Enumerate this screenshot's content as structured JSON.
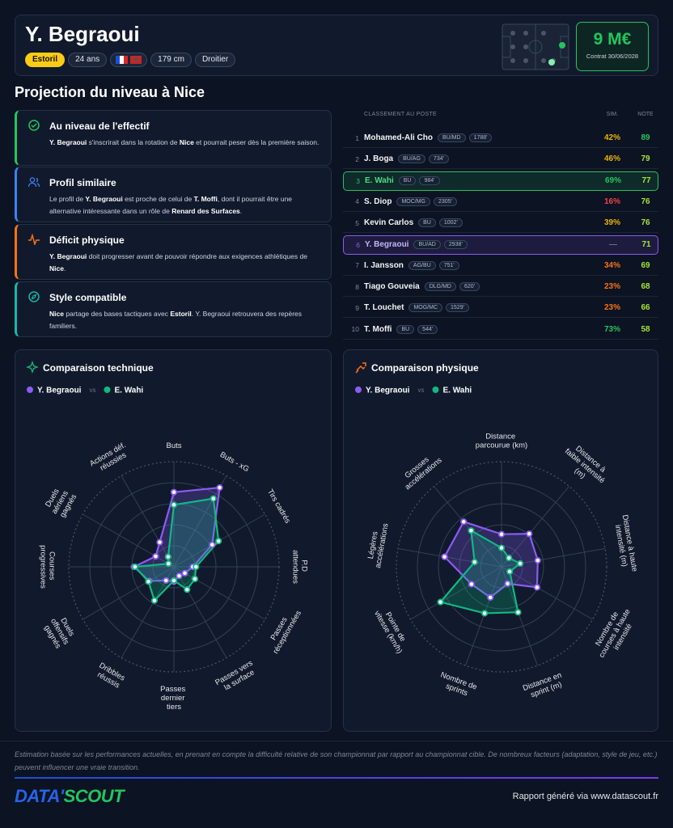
{
  "header": {
    "name": "Y. Begraoui",
    "club": "Estoril",
    "age": "24 ans",
    "height": "179 cm",
    "foot": "Droitier",
    "value": "9 M€",
    "contract": "Contrat 30/06/2028"
  },
  "section_title": "Projection du niveau à Nice",
  "insights": [
    {
      "title": "Au niveau de l'effectif",
      "color": "#22c55e",
      "text": [
        {
          "text": "Y. Begraoui",
          "bold": true
        },
        {
          "text": " s'inscrirait dans la rotation de "
        },
        {
          "text": "Nice",
          "bold": true
        },
        {
          "text": " et pourrait peser dès la première saison."
        }
      ]
    },
    {
      "title": "Profil similaire",
      "color": "#3b82f6",
      "text": [
        {
          "text": "Le profil de "
        },
        {
          "text": "Y. Begraoui",
          "bold": true
        },
        {
          "text": " est proche de celui de "
        },
        {
          "text": "T. Moffi",
          "bold": true
        },
        {
          "text": ", dont il pourrait être une alternative intéressante dans un rôle de "
        },
        {
          "text": "Renard des Surfaces",
          "bold": true
        },
        {
          "text": "."
        }
      ]
    },
    {
      "title": "Déficit physique",
      "color": "#f97316",
      "text": [
        {
          "text": "Y. Begraoui",
          "bold": true
        },
        {
          "text": " doit progresser avant de pouvoir répondre aux exigences athlétiques de "
        },
        {
          "text": "Nice",
          "bold": true
        },
        {
          "text": "."
        }
      ]
    },
    {
      "title": "Style compatible",
      "color": "#14b8a6",
      "text": [
        {
          "text": "Nice",
          "bold": true
        },
        {
          "text": " partage des bases tactiques avec "
        },
        {
          "text": "Estoril",
          "bold": true
        },
        {
          "text": ". Y. Begraoui retrouvera des repères familiers."
        }
      ]
    }
  ],
  "ranking": {
    "header": {
      "position": "CLASSEMENT AU POSTE",
      "sim": "SIM.",
      "note": "NOTE"
    },
    "rows": [
      {
        "rank": 1,
        "name": "Mohamed-Ali Cho",
        "positions": "BU/MD",
        "minutes": "1788'",
        "sim": "42%",
        "note": 89
      },
      {
        "rank": 2,
        "name": "J. Boga",
        "positions": "BU/AG",
        "minutes": "734'",
        "sim": "46%",
        "note": 79
      },
      {
        "rank": 3,
        "name": "E. Wahi",
        "positions": "BU",
        "minutes": "984'",
        "sim": "69%",
        "note": 77,
        "highlight": "#22c55e"
      },
      {
        "rank": 4,
        "name": "S. Diop",
        "positions": "MOC/MG",
        "minutes": "2305'",
        "sim": "16%",
        "note": 76
      },
      {
        "rank": 5,
        "name": "Kevin Carlos",
        "positions": "BU",
        "minutes": "1002'",
        "sim": "39%",
        "note": 76
      },
      {
        "rank": 6,
        "name": "Y. Begraoui",
        "positions": "BU/AD",
        "minutes": "2938'",
        "sim": "—",
        "note": 71,
        "highlight": "#8b5cf6"
      },
      {
        "rank": 7,
        "name": "I. Jansson",
        "positions": "AG/BU",
        "minutes": "751'",
        "sim": "34%",
        "note": 69
      },
      {
        "rank": 8,
        "name": "Tiago Gouveia",
        "positions": "DLG/MD",
        "minutes": "620'",
        "sim": "23%",
        "note": 68
      },
      {
        "rank": 9,
        "name": "T. Louchet",
        "positions": "MOG/MC",
        "minutes": "1529'",
        "sim": "23%",
        "note": 66
      },
      {
        "rank": 10,
        "name": "T. Moffi",
        "positions": "BU",
        "minutes": "544'",
        "sim": "73%",
        "note": 58
      }
    ]
  },
  "chart_data": [
    {
      "type": "radar",
      "title": "Comparaison technique",
      "legend_separator": "vs",
      "ylim": [
        0,
        100
      ],
      "categories": [
        "Buts",
        "Buts - xG",
        "Tirs cadrés",
        "P.D attendues",
        "Passes réceptionnées",
        "Passes vers la surface",
        "Passes dernier tiers",
        "Dribbles réussis",
        "Duels offensifs gagnés",
        "Courses progressives",
        "Duels aériens gagnés",
        "Actions déf. réussies"
      ],
      "series": [
        {
          "name": "Y. Begraoui",
          "color": "#8b5cf6",
          "values": [
            71,
            87,
            42,
            18,
            12,
            10,
            14,
            15,
            27,
            38,
            20,
            27
          ]
        },
        {
          "name": "E. Wahi",
          "color": "#10b981",
          "values": [
            59,
            75,
            49,
            21,
            23,
            25,
            13,
            37,
            28,
            37,
            6,
            11
          ]
        }
      ]
    },
    {
      "type": "radar",
      "title": "Comparaison physique",
      "legend_separator": "vs",
      "ylim": [
        0,
        100
      ],
      "categories": [
        "Distance parcourue (km)",
        "Distance à faible intensité (m)",
        "Distance à haute intensité (m)",
        "Nombre de courses à haute intensité",
        "Distance en sprint (m)",
        "Nombre de sprints",
        "Pointe de vitesse (km/h)",
        "Légères accélérations",
        "Grosses accélérations"
      ],
      "series": [
        {
          "name": "Y. Begraoui",
          "color": "#8b5cf6",
          "values": [
            31,
            41,
            35,
            39,
            17,
            31,
            33,
            55,
            56
          ]
        },
        {
          "name": "E. Wahi",
          "color": "#10b981",
          "values": [
            18,
            11,
            18,
            9,
            46,
            47,
            67,
            26,
            45
          ]
        }
      ]
    }
  ],
  "footer": {
    "disclaimer": "Estimation basée sur les performances actuelles, en prenant en compte la difficulté relative de son championnat par rapport au championnat cible. De nombreux facteurs (adaptation, style de jeu, etc.) peuvent influencer une vraie transition.",
    "logo": [
      "DATA'",
      "SCOUT"
    ],
    "credit": "Rapport généré via www.datascout.fr"
  }
}
